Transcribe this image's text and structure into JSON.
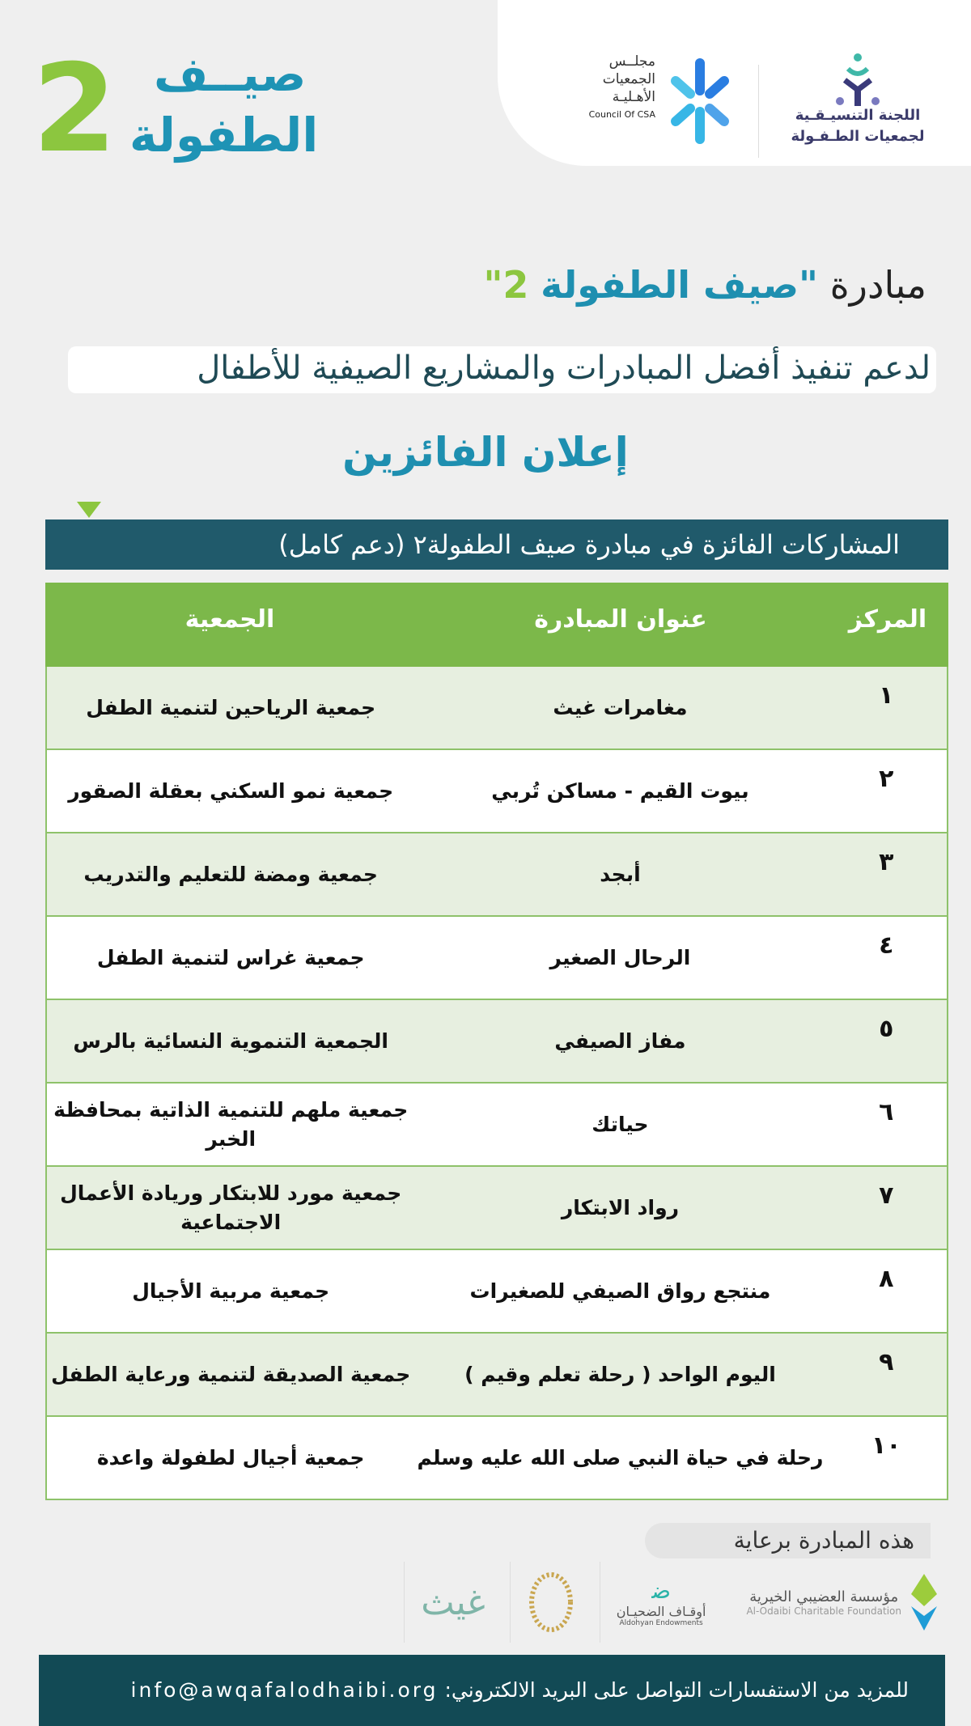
{
  "brand": {
    "line1": "صيــف",
    "line2": "الطفولة",
    "number": "2"
  },
  "logos": {
    "csa": {
      "ar": [
        "مجلــس",
        "الجمعيات",
        "الأهـليـة"
      ],
      "en": "Council Of CSA"
    },
    "committee": {
      "lines": [
        "اللجنة التنسيـقـية",
        "لجمعيات الطـفـولة"
      ]
    }
  },
  "heading": {
    "prefix": "مبادرة",
    "name": "\"صيف الطفولة",
    "number": "2\""
  },
  "subtitle": "لدعم تنفيذ أفضل المبادرات والمشاريع الصيفية للأطفال",
  "announcement": "إعلان الفائزين",
  "section_bar": "المشاركات الفائزة في مبادرة صيف الطفولة٢ (دعم كامل)",
  "table": {
    "headers": {
      "rank": "المركز",
      "title": "عنوان المبادرة",
      "org": "الجمعية"
    },
    "rows": [
      {
        "rank": "١",
        "title": "مغامرات غيث",
        "org": "جمعية الرياحين لتنمية الطفل"
      },
      {
        "rank": "٢",
        "title": "بيوت القيم - مساكن تُربي",
        "org": "جمعية نمو السكني بعقلة الصقور"
      },
      {
        "rank": "٣",
        "title": "أبجد",
        "org": "جمعية ومضة للتعليم والتدريب"
      },
      {
        "rank": "٤",
        "title": "الرحال الصغير",
        "org": "جمعية غراس لتنمية الطفل"
      },
      {
        "rank": "٥",
        "title": "مفاز الصيفي",
        "org": "الجمعية التنموية النسائية بالرس"
      },
      {
        "rank": "٦",
        "title": "حياتك",
        "org": "جمعية ملهم للتنمية الذاتية بمحافظة الخبر"
      },
      {
        "rank": "٧",
        "title": "رواد الابتكار",
        "org": "جمعية مورد للابتكار وريادة الأعمال الاجتماعية"
      },
      {
        "rank": "٨",
        "title": "منتجع رواق الصيفي للصغيرات",
        "org": "جمعية مربية الأجيال"
      },
      {
        "rank": "٩",
        "title": "اليوم الواحد ( رحلة تعلم وقيم )",
        "org": "جمعية الصديقة لتنمية ورعاية الطفل"
      },
      {
        "rank": "١٠",
        "title": "رحلة في حياة النبي صلى الله عليه وسلم",
        "org": "جمعية أجيال لطفولة واعدة"
      }
    ]
  },
  "sponsors": {
    "label": "هذه المبادرة برعاية",
    "items": [
      {
        "ar": "مؤسسة العضيبي الخيرية",
        "en": "Al-Odaibi Charitable Foundation"
      },
      {
        "ar": "أوقـاف الضحيـان",
        "en": "Aldohyan Endowments"
      },
      {
        "ar": "",
        "en": ""
      },
      {
        "ar": "غيث",
        "en": ""
      }
    ]
  },
  "footer": {
    "text": "للمزيد من الاستفسارات التواصل على البريد الالكتروني:",
    "email": "info@awqafalodhaibi.org"
  },
  "colors": {
    "teal": "#1e8fb0",
    "green": "#7cb84a",
    "dark": "#205a6b",
    "footer": "#124a55"
  }
}
